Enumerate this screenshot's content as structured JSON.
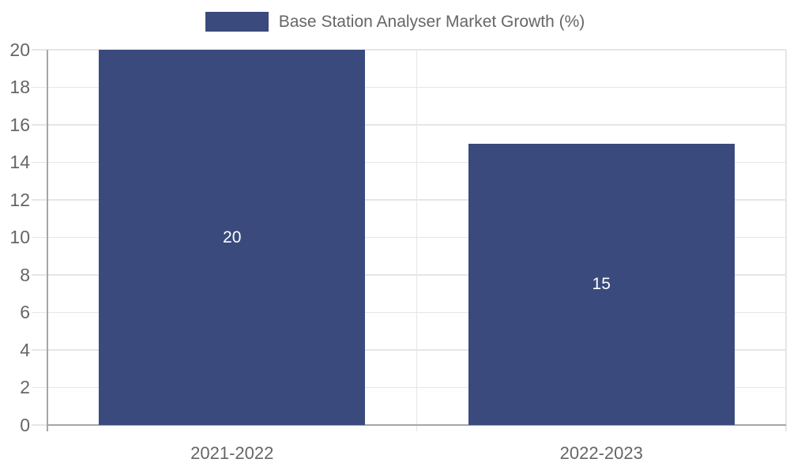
{
  "chart_data": {
    "type": "bar",
    "title": "",
    "legend_label": "Base Station Analyser Market Growth (%)",
    "categories": [
      "2021-2022",
      "2022-2023"
    ],
    "values": [
      20,
      15
    ],
    "bar_labels": [
      "20",
      "15"
    ],
    "yticks": [
      0,
      2,
      4,
      6,
      8,
      10,
      12,
      14,
      16,
      18,
      20
    ],
    "ylim": [
      0,
      20
    ],
    "xlabel": "",
    "ylabel": "",
    "grid": true,
    "legend_position": "top-center",
    "colors": {
      "bar": "#3a4a7d",
      "bar_value_text": "#ffffff",
      "axis_text": "#666666",
      "legend_text": "#666666",
      "gridline": "#e6e6e6",
      "axis_line": "#a6a6a6",
      "background": "#ffffff"
    }
  }
}
